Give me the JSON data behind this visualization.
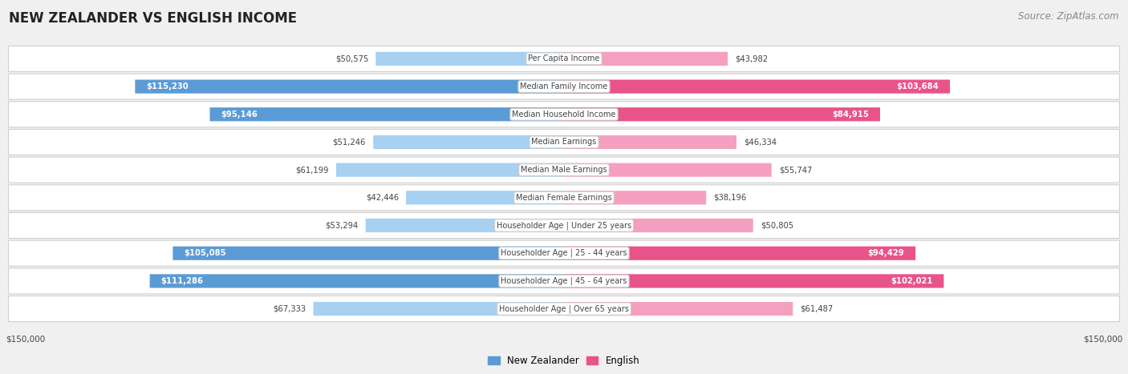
{
  "title": "NEW ZEALANDER VS ENGLISH INCOME",
  "source": "Source: ZipAtlas.com",
  "categories": [
    "Per Capita Income",
    "Median Family Income",
    "Median Household Income",
    "Median Earnings",
    "Median Male Earnings",
    "Median Female Earnings",
    "Householder Age | Under 25 years",
    "Householder Age | 25 - 44 years",
    "Householder Age | 45 - 64 years",
    "Householder Age | Over 65 years"
  ],
  "nz_values": [
    50575,
    115230,
    95146,
    51246,
    61199,
    42446,
    53294,
    105085,
    111286,
    67333
  ],
  "en_values": [
    43982,
    103684,
    84915,
    46334,
    55747,
    38196,
    50805,
    94429,
    102021,
    61487
  ],
  "nz_color_light": "#A8D0F0",
  "nz_color_dark": "#5B9BD5",
  "en_color_light": "#F5A0C0",
  "en_color_dark": "#E8538A",
  "nz_threshold": 70000,
  "en_threshold": 70000,
  "bg_color": "#f0f0f0",
  "row_bg": "#ffffff",
  "max_val": 150000,
  "xlabel_left": "$150,000",
  "xlabel_right": "$150,000",
  "legend_nz": "New Zealander",
  "legend_en": "English",
  "title_fontsize": 12,
  "source_fontsize": 8.5
}
